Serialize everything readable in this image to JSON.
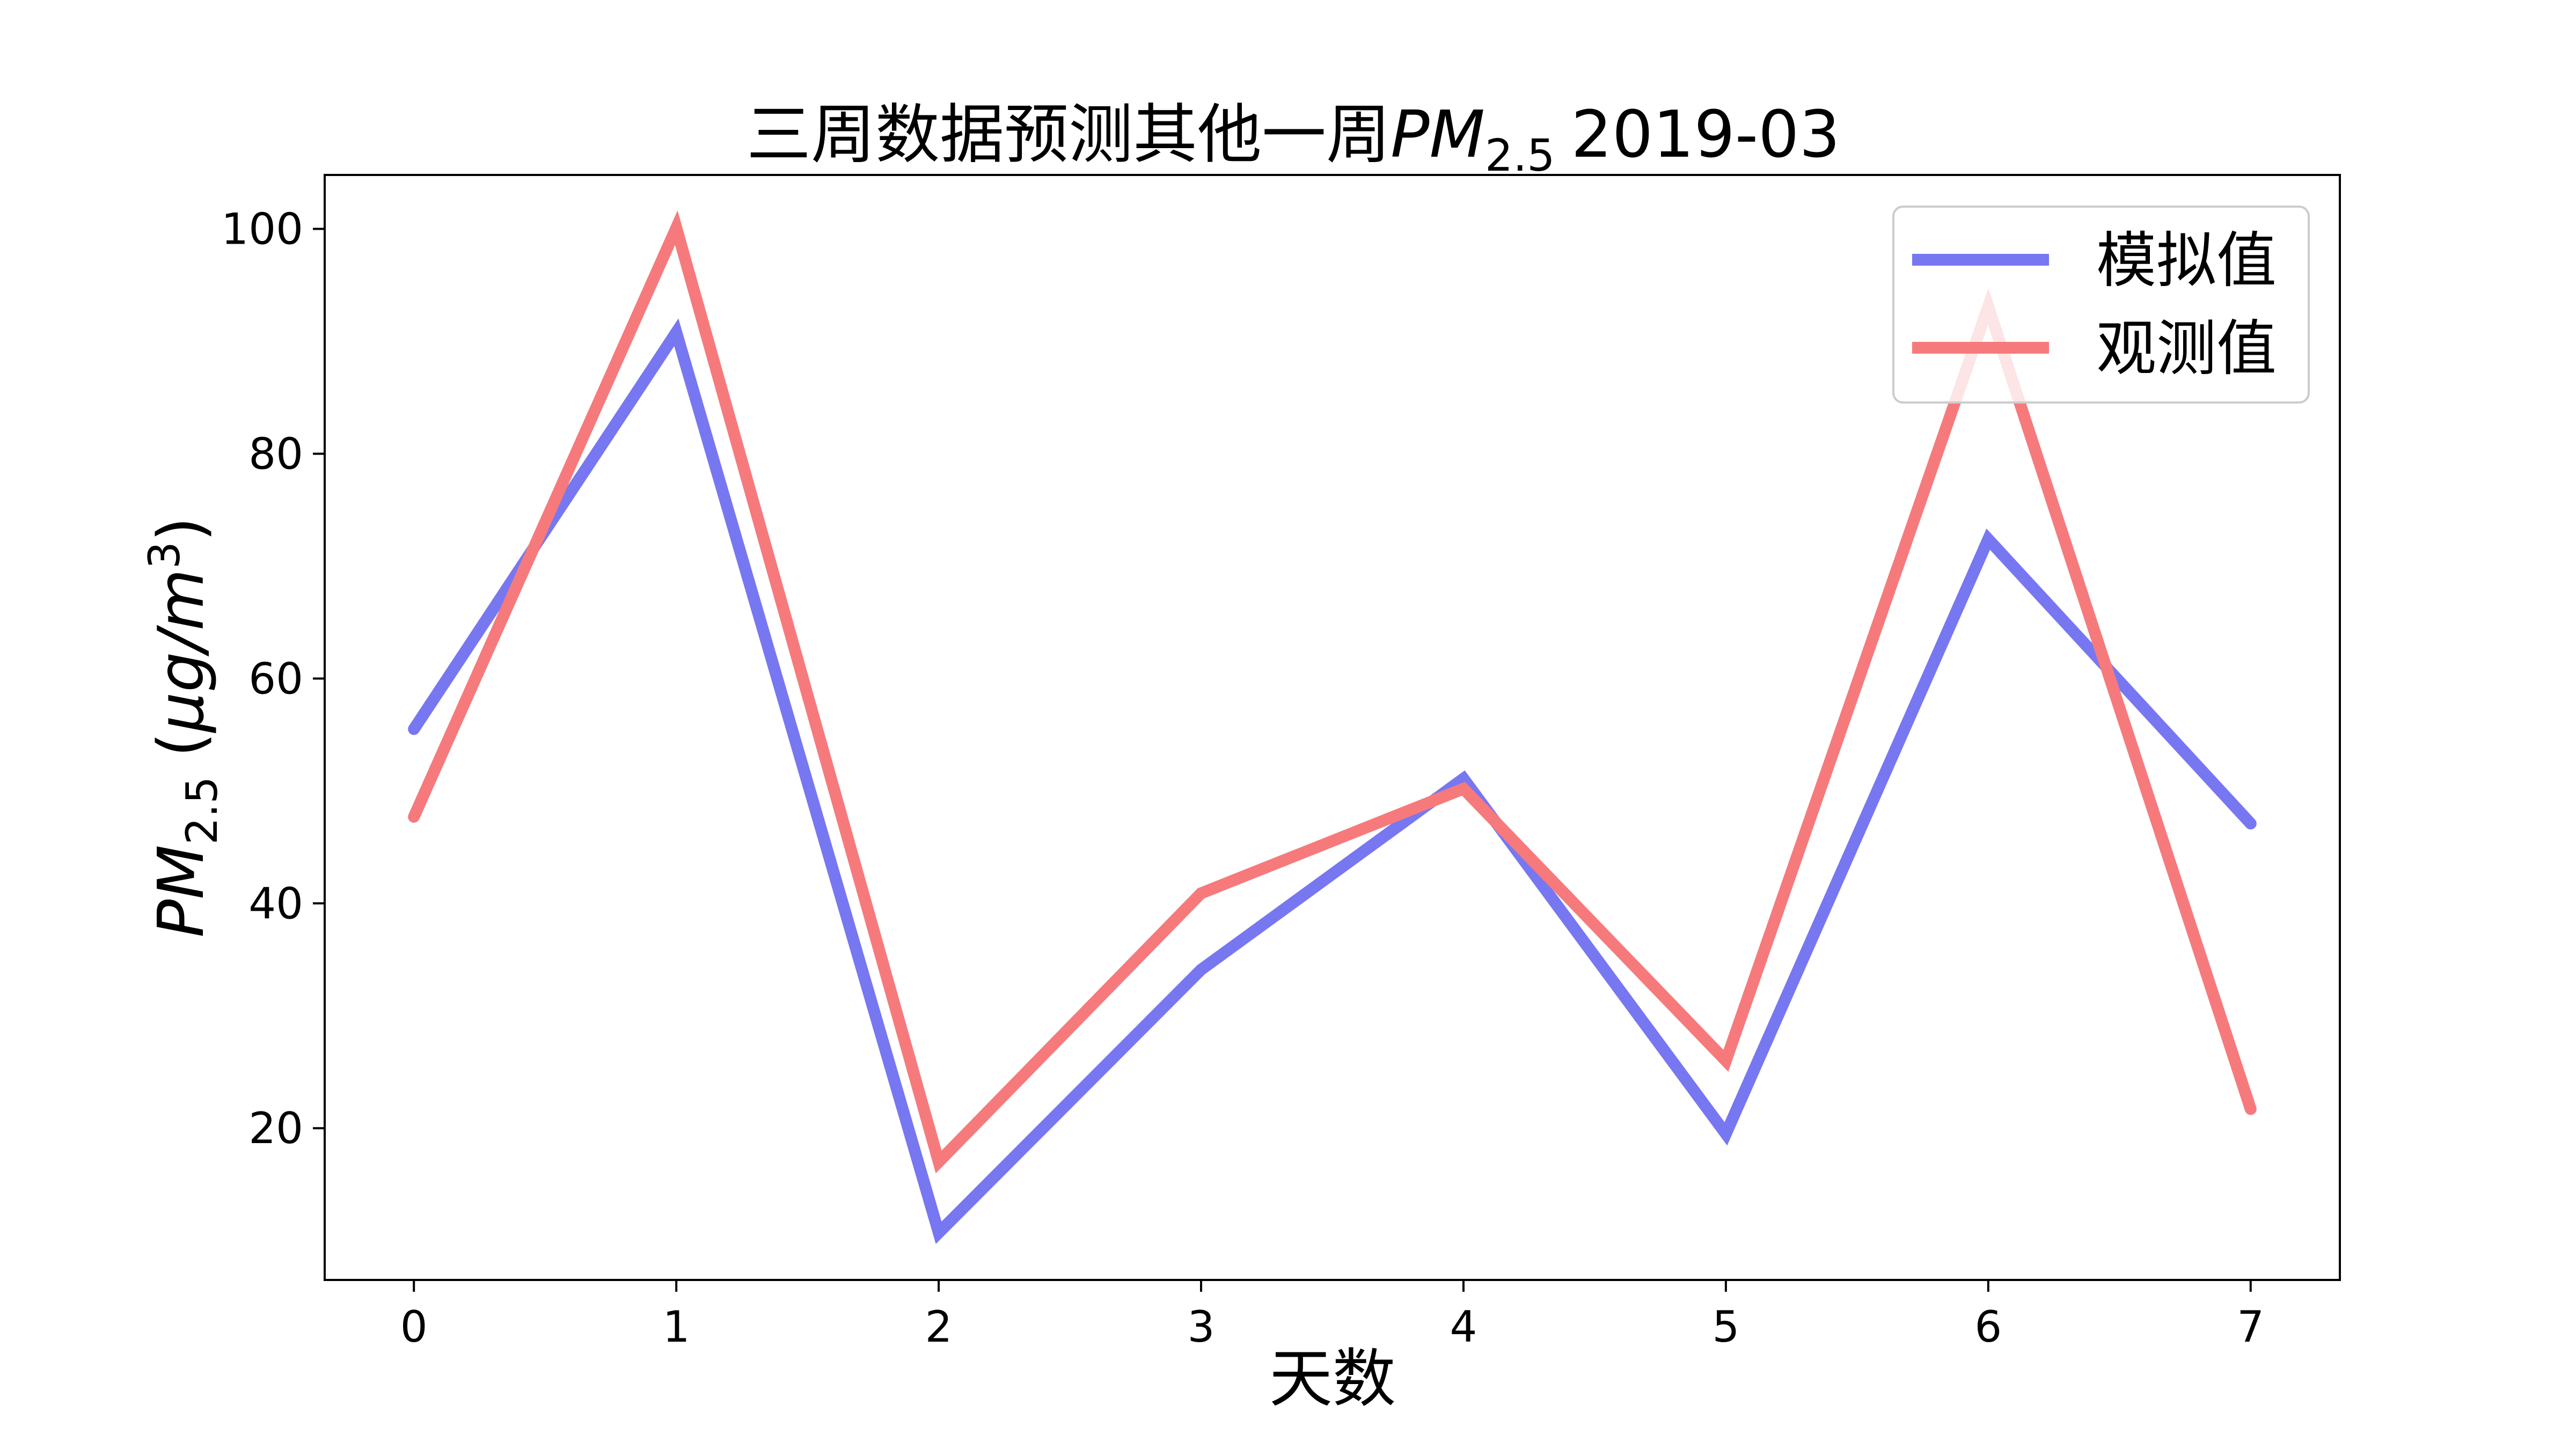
{
  "chart_data": {
    "type": "line",
    "title_main": "三周数据预测其他一周",
    "title_var": "PM",
    "title_sub": "2.5",
    "title_date": "2019-03",
    "xlabel": "天数",
    "ylabel_var": "PM",
    "ylabel_sub": "2.5",
    "ylabel_unit_open": "(",
    "ylabel_unit_body": "μg/m",
    "ylabel_unit_exp": "3",
    "ylabel_unit_close": ")",
    "x": [
      0,
      1,
      2,
      3,
      4,
      5,
      6,
      7
    ],
    "x_ticks": [
      "0",
      "1",
      "2",
      "3",
      "4",
      "5",
      "6",
      "7"
    ],
    "y_ticks": [
      "20",
      "40",
      "60",
      "80",
      "100"
    ],
    "y_tick_values": [
      20,
      40,
      60,
      80,
      100
    ],
    "xlim": [
      -0.34,
      7.34
    ],
    "ylim": [
      6.5,
      104.8
    ],
    "grid": false,
    "legend_position": "top-right",
    "series": [
      {
        "name": "模拟值",
        "color": "#7777f2",
        "values": [
          55.5,
          90.8,
          10.7,
          34.1,
          51.1,
          19.5,
          72.4,
          47.1
        ]
      },
      {
        "name": "观测值",
        "color": "#f67a7c",
        "values": [
          47.7,
          100.1,
          17.0,
          40.9,
          50.2,
          26.0,
          93.1,
          21.7
        ]
      }
    ]
  }
}
